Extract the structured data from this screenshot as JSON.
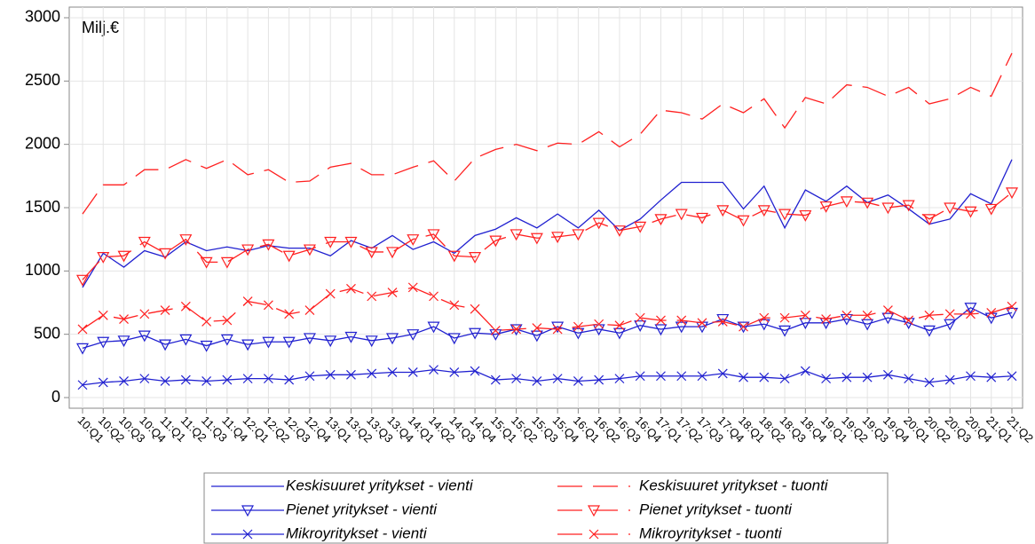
{
  "chart_data": {
    "type": "line",
    "annotation": "Milj.€",
    "categories": [
      "10:Q1",
      "10:Q2",
      "10:Q3",
      "10:Q4",
      "11:Q1",
      "11:Q2",
      "11:Q3",
      "11:Q4",
      "12:Q1",
      "12:Q2",
      "12:Q3",
      "12:Q4",
      "13:Q1",
      "13:Q2",
      "13:Q3",
      "13:Q4",
      "14:Q1",
      "14:Q2",
      "14:Q3",
      "14:Q4",
      "15:Q1",
      "15:Q2",
      "15:Q3",
      "15:Q4",
      "16:Q1",
      "16:Q2",
      "16:Q3",
      "16:Q4",
      "17:Q1",
      "17:Q2",
      "17:Q3",
      "17:Q4",
      "18:Q1",
      "18:Q2",
      "18:Q3",
      "18:Q4",
      "19:Q1",
      "19:Q2",
      "19:Q3",
      "19:Q4",
      "20:Q1",
      "20:Q2",
      "20:Q3",
      "20:Q4",
      "21:Q1",
      "21:Q2"
    ],
    "series": [
      {
        "name": "Keskisuuret yritykset - vienti",
        "color": "#2020d0",
        "dash": "solid",
        "marker": "none",
        "values": [
          870,
          1140,
          1030,
          1160,
          1110,
          1230,
          1160,
          1190,
          1160,
          1200,
          1180,
          1180,
          1120,
          1240,
          1180,
          1280,
          1170,
          1230,
          1140,
          1280,
          1330,
          1420,
          1340,
          1450,
          1340,
          1480,
          1320,
          1410,
          1560,
          1700,
          1700,
          1700,
          1490,
          1670,
          1340,
          1640,
          1550,
          1670,
          1540,
          1600,
          1490,
          1370,
          1410,
          1610,
          1530,
          1880
        ]
      },
      {
        "name": "Keskisuuret yritykset - tuonti",
        "color": "#ff2020",
        "dash": "dashed",
        "marker": "none",
        "values": [
          1450,
          1680,
          1680,
          1800,
          1800,
          1880,
          1810,
          1880,
          1760,
          1800,
          1700,
          1710,
          1820,
          1850,
          1760,
          1760,
          1820,
          1870,
          1710,
          1890,
          1960,
          2000,
          1950,
          2010,
          2000,
          2100,
          1980,
          2080,
          2270,
          2250,
          2200,
          2320,
          2250,
          2360,
          2130,
          2370,
          2320,
          2470,
          2450,
          2380,
          2450,
          2320,
          2360,
          2450,
          2380,
          2720
        ]
      },
      {
        "name": "Pienet yritykset - vienti",
        "color": "#2020d0",
        "dash": "solid",
        "marker": "triangle",
        "values": [
          390,
          440,
          450,
          490,
          420,
          460,
          410,
          460,
          420,
          440,
          440,
          470,
          450,
          480,
          450,
          470,
          500,
          560,
          470,
          510,
          500,
          540,
          490,
          560,
          510,
          540,
          510,
          570,
          540,
          560,
          560,
          620,
          560,
          580,
          530,
          590,
          590,
          620,
          580,
          630,
          590,
          530,
          580,
          710,
          630,
          670
        ]
      },
      {
        "name": "Pienet yritykset - tuonti",
        "color": "#ff2020",
        "dash": "dashed",
        "marker": "triangle",
        "values": [
          930,
          1110,
          1120,
          1230,
          1140,
          1250,
          1070,
          1070,
          1170,
          1210,
          1120,
          1170,
          1230,
          1230,
          1150,
          1150,
          1250,
          1290,
          1120,
          1110,
          1240,
          1290,
          1260,
          1270,
          1290,
          1380,
          1320,
          1350,
          1410,
          1450,
          1420,
          1480,
          1400,
          1480,
          1450,
          1440,
          1510,
          1550,
          1540,
          1500,
          1520,
          1410,
          1500,
          1470,
          1490,
          1620
        ]
      },
      {
        "name": "Mikroyritykset - vienti",
        "color": "#2020d0",
        "dash": "solid",
        "marker": "cross",
        "values": [
          100,
          120,
          130,
          150,
          130,
          140,
          130,
          140,
          150,
          150,
          140,
          170,
          180,
          180,
          190,
          200,
          200,
          220,
          200,
          210,
          140,
          150,
          130,
          150,
          130,
          140,
          150,
          170,
          170,
          170,
          170,
          190,
          160,
          160,
          150,
          210,
          150,
          160,
          160,
          180,
          150,
          120,
          140,
          170,
          160,
          170
        ]
      },
      {
        "name": "Mikroyritykset - tuonti",
        "color": "#ff2020",
        "dash": "dashed",
        "marker": "cross",
        "values": [
          540,
          650,
          620,
          660,
          690,
          720,
          600,
          610,
          760,
          730,
          660,
          690,
          820,
          860,
          800,
          830,
          870,
          800,
          730,
          700,
          530,
          540,
          550,
          540,
          560,
          580,
          570,
          630,
          610,
          610,
          590,
          600,
          560,
          630,
          630,
          650,
          620,
          650,
          650,
          690,
          610,
          650,
          660,
          660,
          670,
          720
        ]
      }
    ],
    "ylim": [
      -84,
      3084
    ],
    "yticks": [
      0,
      500,
      1000,
      1500,
      2000,
      2500,
      3000
    ],
    "grid": true
  }
}
